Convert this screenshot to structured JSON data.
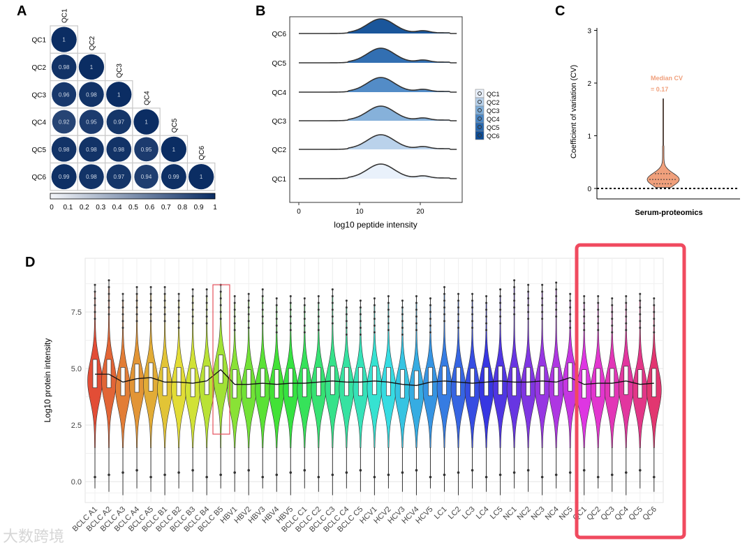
{
  "panels": {
    "a": "A",
    "b": "B",
    "c": "C",
    "d": "D"
  },
  "watermark": "大数跨境",
  "chart_data": [
    {
      "type": "heatmap",
      "panel": "A",
      "labels": [
        "QC1",
        "QC2",
        "QC3",
        "QC4",
        "QC5",
        "QC6"
      ],
      "matrix": [
        [
          1
        ],
        [
          0.98,
          1
        ],
        [
          0.96,
          0.98,
          1
        ],
        [
          0.92,
          0.95,
          0.97,
          1
        ],
        [
          0.98,
          0.98,
          0.98,
          0.95,
          1
        ],
        [
          0.99,
          0.98,
          0.97,
          0.94,
          0.99,
          1
        ]
      ],
      "colorbar_ticks": [
        "0",
        "0.1",
        "0.2",
        "0.3",
        "0.4",
        "0.5",
        "0.6",
        "0.7",
        "0.8",
        "0.9",
        "1"
      ],
      "colorbar_range": [
        0,
        1
      ],
      "colors": {
        "low": "#f4f6fa",
        "high": "#0b2d63"
      }
    },
    {
      "type": "area",
      "panel": "B",
      "series": [
        "QC6",
        "QC5",
        "QC4",
        "QC3",
        "QC2",
        "QC1"
      ],
      "xlabel": "log10 peptide intensity",
      "x_ticks": [
        "0",
        "10",
        "20"
      ],
      "xlim": [
        -1,
        27
      ],
      "peak": 13.5,
      "legend": [
        "QC1",
        "QC2",
        "QC3",
        "QC4",
        "QC5",
        "QC6"
      ],
      "legend_placement": "right",
      "fill_colors": [
        "#0e4d96",
        "#2767ae",
        "#4a86c4",
        "#7fadd8",
        "#b6d0ea",
        "#e8f0fb"
      ]
    },
    {
      "type": "violin",
      "panel": "C",
      "ylabel": "Coefficient of variation (CV)",
      "xlabel": "Serum-proteomics",
      "y_ticks": [
        "0",
        "1",
        "2",
        "3"
      ],
      "ylim": [
        0,
        3
      ],
      "median": 0.17,
      "max": 1.7,
      "annotation": [
        "Median CV",
        "= 0.17"
      ],
      "color": "#f0a07c"
    },
    {
      "type": "violin",
      "panel": "D",
      "ylabel": "Log10 protein intensity",
      "y_ticks": [
        "0.0",
        "2.5",
        "5.0",
        "7.5"
      ],
      "ylim": [
        -0.9,
        9.4
      ],
      "categories": [
        "BCLC A1",
        "BCLC A2",
        "BCLC A3",
        "BCLC A4",
        "BCLC A5",
        "BCLC B1",
        "BCLC B2",
        "BCLC B3",
        "BCLC B4",
        "BCLC B5",
        "HBV1",
        "HBV2",
        "HBV3",
        "HBV4",
        "HBV5",
        "BCLC C1",
        "BCLC C2",
        "BCLC C3",
        "BCLC C4",
        "BCLC C5",
        "HCV1",
        "HCV2",
        "HCV3",
        "HCV4",
        "HCV5",
        "LC1",
        "LC2",
        "LC3",
        "LC4",
        "LC5",
        "NC1",
        "NC2",
        "NC3",
        "NC4",
        "NC5",
        "QC1",
        "QC2",
        "QC3",
        "QC4",
        "QC5",
        "QC6"
      ],
      "medians": [
        4.75,
        4.75,
        4.4,
        4.55,
        4.6,
        4.4,
        4.4,
        4.35,
        4.45,
        4.95,
        4.3,
        4.3,
        4.35,
        4.3,
        4.35,
        4.35,
        4.4,
        4.45,
        4.4,
        4.4,
        4.45,
        4.4,
        4.3,
        4.25,
        4.4,
        4.45,
        4.4,
        4.35,
        4.4,
        4.45,
        4.4,
        4.4,
        4.45,
        4.4,
        4.6,
        4.3,
        4.35,
        4.35,
        4.45,
        4.3,
        4.35
      ],
      "max": [
        8.7,
        8.9,
        8.3,
        8.6,
        8.6,
        8.6,
        8.3,
        8.5,
        8.5,
        8.7,
        8.2,
        8.3,
        8.5,
        8.1,
        8.2,
        8.1,
        8.2,
        8.5,
        8.0,
        8.0,
        8.1,
        8.2,
        8.0,
        8.2,
        8.1,
        8.6,
        8.3,
        8.3,
        8.2,
        8.5,
        8.9,
        8.7,
        8.7,
        8.8,
        8.3,
        8.2,
        8.2,
        8.1,
        8.2,
        8.3,
        8.1
      ],
      "highlight": [
        "BCLC B5",
        "QC1-QC6"
      ]
    }
  ]
}
